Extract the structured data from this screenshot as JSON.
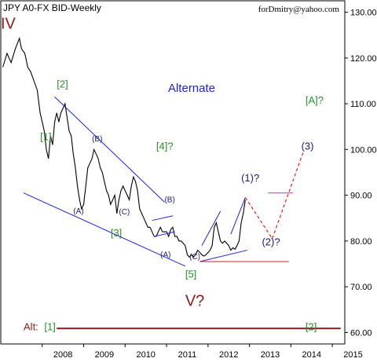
{
  "chart_data": {
    "type": "line",
    "title": "JPY A0-FX BID-Weekly",
    "credit": "forDmitry@yahoo.com",
    "subtitle": "Alternate",
    "x_ticks": [
      "2008",
      "2009",
      "2010",
      "2011",
      "2012",
      "2013",
      "2014",
      "2015"
    ],
    "y_ticks": [
      "60.00",
      "70.00",
      "80.00",
      "90.00",
      "100.00",
      "110.00",
      "120.00",
      "130.00"
    ],
    "ylim": [
      57.5,
      132.5
    ],
    "xlim": [
      2007.0,
      2015.3
    ],
    "grid": false,
    "series": [
      {
        "x": [
          2007.05,
          2007.15,
          2007.25,
          2007.35,
          2007.45,
          2007.5,
          2007.58,
          2007.65,
          2007.72,
          2007.8,
          2007.88,
          2007.95,
          2008.0,
          2008.05,
          2008.1,
          2008.15,
          2008.2,
          2008.25,
          2008.3,
          2008.35,
          2008.4,
          2008.45,
          2008.5,
          2008.55,
          2008.6,
          2008.65,
          2008.7,
          2008.75,
          2008.8,
          2008.85,
          2008.9,
          2008.95,
          2009.0,
          2009.05,
          2009.1,
          2009.15,
          2009.2,
          2009.25,
          2009.3,
          2009.35,
          2009.4,
          2009.45,
          2009.5,
          2009.55,
          2009.6,
          2009.65,
          2009.7,
          2009.75,
          2009.8,
          2009.85,
          2009.9,
          2009.95,
          2010.0,
          2010.05,
          2010.1,
          2010.15,
          2010.2,
          2010.25,
          2010.3,
          2010.35,
          2010.4,
          2010.45,
          2010.5,
          2010.55,
          2010.6,
          2010.65,
          2010.7,
          2010.75,
          2010.8,
          2010.85,
          2010.9,
          2010.95,
          2011.0,
          2011.05,
          2011.1,
          2011.15,
          2011.2,
          2011.25,
          2011.3,
          2011.35,
          2011.4,
          2011.45,
          2011.5,
          2011.55,
          2011.6,
          2011.65,
          2011.7,
          2011.75,
          2011.8,
          2011.85,
          2011.9,
          2011.95,
          2012.0,
          2012.05,
          2012.1,
          2012.15,
          2012.2,
          2012.25,
          2012.3,
          2012.35,
          2012.4,
          2012.45,
          2012.5,
          2012.55,
          2012.6,
          2012.65,
          2012.7,
          2012.75,
          2012.8,
          2012.85,
          2012.9
        ],
        "y": [
          118,
          121,
          119,
          122,
          124.3,
          122,
          121,
          118,
          117,
          115,
          113,
          108,
          106,
          104,
          100,
          98,
          103,
          101,
          106,
          108,
          106,
          108,
          109,
          110,
          107,
          104,
          103,
          99,
          96,
          92,
          89,
          87,
          88,
          92,
          96,
          97,
          98,
          100,
          99,
          98,
          96,
          95,
          93,
          91,
          90,
          88,
          89,
          90,
          86,
          89,
          91,
          92,
          91,
          90,
          89,
          92,
          94,
          93,
          91,
          87,
          86,
          85,
          84,
          83,
          83,
          82,
          81,
          81,
          82,
          83,
          82,
          82,
          82,
          81,
          82.5,
          83,
          81,
          81,
          80,
          80,
          79.5,
          79,
          77,
          76.5,
          77,
          76.5,
          77,
          78,
          77.5,
          77,
          76.7,
          77,
          77.5,
          78,
          79,
          83,
          84,
          82,
          80,
          79.5,
          80,
          79.5,
          79,
          78,
          78.5,
          78.2,
          79,
          80,
          84,
          86,
          89
        ]
      }
    ],
    "labels": [
      {
        "text": "IV",
        "x": 2007.0,
        "y": 126.4,
        "color": "#8b1a1a"
      },
      {
        "text": "[1]",
        "x": 2007.95,
        "y": 102,
        "color": "#2e8b2e"
      },
      {
        "text": "[2]",
        "x": 2008.35,
        "y": 113.5,
        "color": "#2e8b2e"
      },
      {
        "text": "[3]",
        "x": 2009.65,
        "y": 81,
        "color": "#2e8b2e"
      },
      {
        "text": "[4]?",
        "x": 2010.75,
        "y": 100,
        "color": "#2e8b2e"
      },
      {
        "text": "[5]",
        "x": 2011.45,
        "y": 72,
        "color": "#2e8b2e"
      },
      {
        "text": "V?",
        "x": 2011.45,
        "y": 65.8,
        "color": "#8b1a1a"
      },
      {
        "text": "[A]?",
        "x": 2014.35,
        "y": 110,
        "color": "#2e8b2e"
      },
      {
        "text": "(A)",
        "x": 2008.75,
        "y": 86,
        "color": "#1a1a70"
      },
      {
        "text": "(B)",
        "x": 2009.2,
        "y": 101.8,
        "color": "#1a1a70"
      },
      {
        "text": "(C)",
        "x": 2009.85,
        "y": 85.8,
        "color": "#1a1a70"
      },
      {
        "text": "(A)",
        "x": 2010.85,
        "y": 76.5,
        "color": "#1a1a70"
      },
      {
        "text": "(B)",
        "x": 2010.95,
        "y": 88.5,
        "color": "#1a1a70"
      },
      {
        "text": "(C)",
        "x": 2011.55,
        "y": 76,
        "color": "#1a1a70"
      },
      {
        "text": "(1)?",
        "x": 2012.8,
        "y": 93,
        "color": "#1a1a70"
      },
      {
        "text": "(2)?",
        "x": 2013.3,
        "y": 79,
        "color": "#1a1a70"
      },
      {
        "text": "(3)",
        "x": 2014.25,
        "y": 100,
        "color": "#1a1a70"
      },
      {
        "text": "Alt:",
        "x": 2007.55,
        "y": 60.5,
        "color": "#8b1a1a"
      },
      {
        "text": "[1]",
        "x": 2008.05,
        "y": 60.5,
        "color": "#2e8b2e"
      },
      {
        "text": "[2]",
        "x": 2014.35,
        "y": 60.5,
        "color": "#2e8b2e"
      }
    ],
    "trendlines": [
      {
        "points": [
          [
            2008.3,
            111.5
          ],
          [
            2010.95,
            88.5
          ]
        ],
        "color": "#2222cc"
      },
      {
        "points": [
          [
            2007.55,
            90.5
          ],
          [
            2011.45,
            74.5
          ]
        ],
        "color": "#2222cc"
      },
      {
        "points": [
          [
            2010.65,
            84.5
          ],
          [
            2011.15,
            85.5
          ]
        ],
        "color": "#2222cc"
      },
      {
        "points": [
          [
            2010.7,
            81
          ],
          [
            2011.2,
            82
          ]
        ],
        "color": "#2222cc"
      },
      {
        "points": [
          [
            2011.8,
            75.5
          ],
          [
            2012.95,
            78
          ]
        ],
        "color": "#2222cc"
      },
      {
        "points": [
          [
            2011.85,
            79
          ],
          [
            2012.3,
            86.5
          ]
        ],
        "color": "#2222cc"
      },
      {
        "points": [
          [
            2012.55,
            81.5
          ],
          [
            2012.9,
            89.5
          ]
        ],
        "color": "#2222cc"
      },
      {
        "points": [
          [
            2011.8,
            75.5
          ],
          [
            2013.95,
            75.5
          ]
        ],
        "color": "#cc2222"
      },
      {
        "points": [
          [
            2013.45,
            90.5
          ],
          [
            2014.05,
            90.5
          ]
        ],
        "color": "#cc3399"
      },
      {
        "points": [
          [
            2008.35,
            60.9
          ],
          [
            2015.2,
            60.9
          ]
        ],
        "color": "#8b1a1a"
      }
    ],
    "projection": {
      "points": [
        [
          2012.9,
          89.5
        ],
        [
          2013.55,
          80.5
        ],
        [
          2014.3,
          99.5
        ]
      ],
      "color": "#dd2222"
    }
  }
}
